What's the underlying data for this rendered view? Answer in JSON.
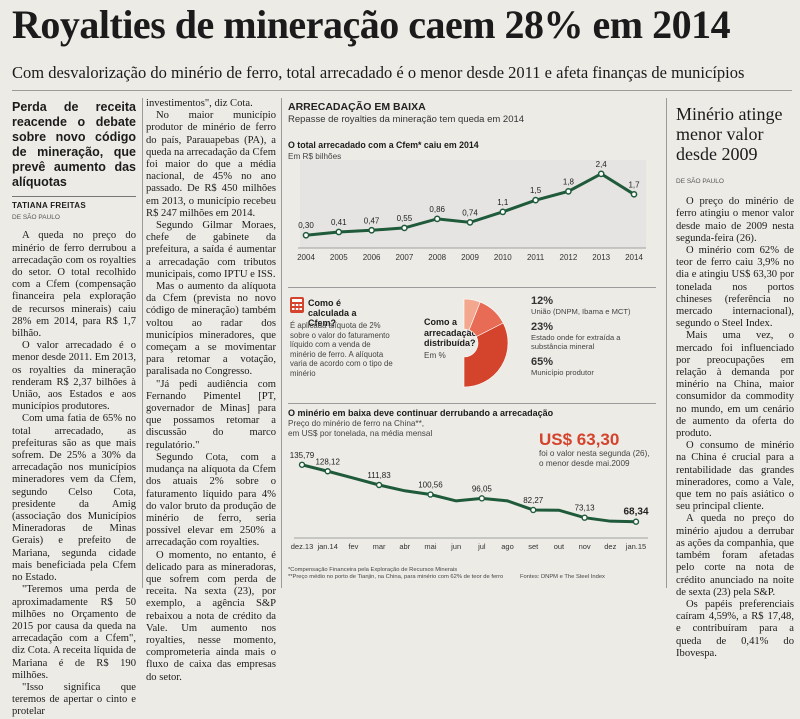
{
  "headline": "Royalties de mineração caem 28% em 2014",
  "subheadline": "Com desvalorização do minério de ferro, total arrecadado é o menor desde 2011 e afeta finanças de municípios",
  "left_column": {
    "lead": "Perda de receita reacende o debate sobre novo código de mineração, que prevê aumento das alíquotas",
    "author": "TATIANA FREITAS",
    "dateline": "DE SÃO PAULO",
    "paragraphs": [
      "A queda no preço do minério de ferro derrubou a arrecadação com os royalties do setor. O total recolhido com a Cfem (compensação financeira pela exploração de recursos minerais) caiu 28% em 2014, para R$ 1,7 bilhão.",
      "O valor arrecadado é o menor desde 2011. Em 2013, os royalties da mineração renderam R$ 2,37 bilhões à União, aos Estados e aos municípios produtores.",
      "Com uma fatia de 65% no total arrecadado, as prefeituras são as que mais sofrem. De 25% a 30% da arrecadação nos municípios mineradores vem da Cfem, segundo Celso Cota, presidente da Amig (associação dos Municípios Mineradoras de Minas Gerais) e prefeito de Mariana, segunda cidade mais beneficiada pela Cfem no Estado.",
      "\"Teremos uma perda de aproximadamente R$ 50 milhões no Orçamento de 2015 por causa da queda na arrecadação com a Cfem\", diz Cota. A receita líquida de Mariana é de R$ 190 milhões.",
      "\"Isso significa que teremos de apertar o cinto e protelar"
    ]
  },
  "middle_column": {
    "paragraphs": [
      "investimentos\", diz Cota.",
      "No maior município produtor de minério de ferro do país, Parauapebas (PA), a queda na arrecadação da Cfem foi maior do que a média nacional, de 45% no ano passado. De R$ 450 milhões em 2013, o município recebeu R$ 247 milhões em 2014.",
      "Segundo Gilmar Moraes, chefe de gabinete da prefeitura, a saída é aumentar a arrecadação com tributos municipais, como IPTU e ISS.",
      "Mas o aumento da alíquota da Cfem (prevista no novo código de mineração) também voltou ao radar dos municípios mineradores, que começam a se movimentar para retomar a votação, paralisada no Congresso.",
      "\"Já pedi audiência com Fernando Pimentel [PT, governador de Minas] para que possamos retomar a discussão do marco regulatório.\"",
      "Segundo Cota, com a mudança na alíquota da Cfem dos atuais 2% sobre o faturamento líquido para 4% do valor bruto da produção de minério de ferro, seria possível elevar em 250% a arrecadação com royalties.",
      "O momento, no entanto, é delicado para as mineradoras, que sofrem com perda de receita. Na sexta (23), por exemplo, a agência S&P rebaixou a nota de crédito da Vale. Um aumento nos royalties, nesse momento, comprometeria ainda mais o fluxo de caixa das empresas do setor."
    ]
  },
  "graphic": {
    "section_title": "ARRECADAÇÃO EM BAIXA",
    "section_subtitle": "Repasse de royalties da mineração tem queda em 2014",
    "chart1_title": "O total arrecadado com a Cfem* caiu em 2014",
    "chart1_unit": "Em R$ bilhões",
    "pie_title": "Como é calculada a Cfem?",
    "pie_desc": "É aplicada alíquota de 2% sobre o valor do faturamento líquido com a venda de minério de ferro. A alíquota varia de acordo com o tipo de minério",
    "pie_question": "Como a arrecadação é distribuída?",
    "pie_unit": "Em %",
    "pie_legend": [
      {
        "pct": "12%",
        "label": "União (DNPM, Ibama e MCT)"
      },
      {
        "pct": "23%",
        "label": "Estado onde for extraída a substância mineral"
      },
      {
        "pct": "65%",
        "label": "Município produtor"
      }
    ],
    "chart2_title": "O minério em baixa deve continuar derrubando a arrecadação",
    "chart2_subtitle_1": "Preço do minério de ferro na China**,",
    "chart2_subtitle_2": "em US$ por tonelada, na média mensal",
    "chart2_callout_value": "US$ 63,30",
    "chart2_callout_text_1": "foi o valor nesta segunda (26),",
    "chart2_callout_text_2": "o menor desde mai.2009",
    "footnote_1": "*Compensação Financeira pela Exploração de Recursos Minerais",
    "footnote_2": "**Preço médio no porto de Tianjin, na China, para minério com 62% de teor de ferro",
    "sources": "Fontes: DNPM e The Steel Index"
  },
  "sidebar": {
    "title": "Minério atinge menor valor desde 2009",
    "dateline": "DE SÃO PAULO",
    "paragraphs": [
      "O preço do minério de ferro atingiu o menor valor desde maio de 2009 nesta segunda-feira (26).",
      "O minério com 62% de teor de ferro caiu 3,9% no dia e atingiu US$ 63,30 por tonelada nos portos chineses (referência no mercado internacional), segundo o Steel Index.",
      "Mais uma vez, o mercado foi influenciado por preocupações em relação à demanda por minério na China, maior consumidor da commodity no mundo, em um cenário de aumento da oferta do produto.",
      "O consumo de minério na China é crucial para a rentabilidade das grandes mineradores, como a Vale, que tem no país asiático o seu principal cliente.",
      "A queda no preço do minério ajudou a derrubar as ações da companhia, que também foram afetadas pelo corte na nota de crédito anunciado na noite de sexta (23) pela S&P.",
      "Os papéis preferenciais caíram 4,59%, a R$ 17,48, e contribuíram para a queda de 0,41% do Ibovespa."
    ]
  },
  "colors": {
    "accent": "#d4432c",
    "line": "#1f5a3a",
    "light": "#f4a78f"
  },
  "chart_data": [
    {
      "type": "line",
      "title": "O total arrecadado com a Cfem* caiu em 2014",
      "ylabel": "Em R$ bilhões",
      "x": [
        "2004",
        "2005",
        "2006",
        "2007",
        "2008",
        "2009",
        "2010",
        "2011",
        "2012",
        "2013",
        "2014"
      ],
      "values": [
        0.3,
        0.41,
        0.47,
        0.55,
        0.86,
        0.74,
        1.1,
        1.5,
        1.8,
        2.4,
        1.7
      ],
      "labels": [
        "0,30",
        "0,41",
        "0,47",
        "0,55",
        "0,86",
        "0,74",
        "1,1",
        "1,5",
        "1,8",
        "2,4",
        "1,7"
      ],
      "ylim": [
        0,
        2.6
      ]
    },
    {
      "type": "pie",
      "title": "Como a arrecadação é distribuída?",
      "categories": [
        "União (DNPM, Ibama e MCT)",
        "Estado onde for extraída a substância mineral",
        "Município produtor"
      ],
      "values": [
        12,
        23,
        65
      ]
    },
    {
      "type": "line",
      "title": "O minério em baixa deve continuar derrubando a arrecadação",
      "ylabel": "em US$ por tonelada, na média mensal",
      "x": [
        "dez.13",
        "jan.14",
        "fev",
        "mar",
        "abr",
        "mai",
        "jun",
        "jul",
        "ago",
        "set",
        "out",
        "nov",
        "dez",
        "jan.15"
      ],
      "values": [
        135.79,
        128.12,
        120.0,
        111.83,
        105.0,
        100.56,
        93.0,
        96.05,
        93.0,
        82.27,
        82.0,
        73.13,
        69.0,
        68.34
      ],
      "labels": [
        "135,79",
        "128,12",
        "",
        "111,83",
        "",
        "100,56",
        "",
        "96,05",
        "",
        "82,27",
        "",
        "73,13",
        "",
        "68,34"
      ],
      "ylim": [
        55,
        145
      ]
    }
  ]
}
